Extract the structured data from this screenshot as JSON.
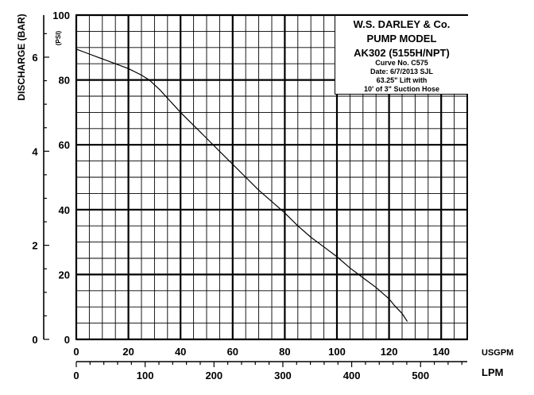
{
  "chart_data": {
    "type": "line",
    "title_lines": [
      "W.S. DARLEY & Co.",
      "PUMP MODEL",
      "AK302 (5155H/NPT)"
    ],
    "info_lines": [
      "Curve No. C575",
      "Date: 6/7/2013  SJL",
      "63.25\" Lift with",
      "10' of 3\" Suction Hose"
    ],
    "xlabel": "USGPM",
    "xlabel_secondary": "LPM",
    "ylabel": "(PSI)",
    "ylabel_secondary": "DISCHARGE (BAR)",
    "xlim": [
      0,
      150
    ],
    "ylim": [
      0,
      100
    ],
    "x_ticks": [
      0,
      20,
      40,
      60,
      80,
      100,
      120,
      140
    ],
    "y_ticks": [
      0,
      20,
      40,
      60,
      80,
      100
    ],
    "lpm_ticks": [
      0,
      100,
      200,
      300,
      400,
      500
    ],
    "bar_ticks": [
      0,
      2,
      4,
      6
    ],
    "grid": true,
    "series": [
      {
        "x": [
          0,
          5,
          10,
          15,
          20,
          25,
          28,
          32,
          36,
          40,
          45,
          50,
          55,
          60,
          65,
          70,
          75,
          80,
          85,
          90,
          95,
          100,
          105,
          110,
          115,
          120,
          122,
          125,
          127
        ],
        "y": [
          89.5,
          88,
          86.5,
          85,
          83.5,
          81.5,
          80,
          77,
          73.5,
          70,
          66,
          62,
          58,
          54,
          50,
          46,
          42.5,
          39,
          35,
          31.5,
          28.5,
          25.5,
          22,
          19,
          16,
          12.5,
          10.5,
          8,
          5.5
        ]
      }
    ]
  }
}
